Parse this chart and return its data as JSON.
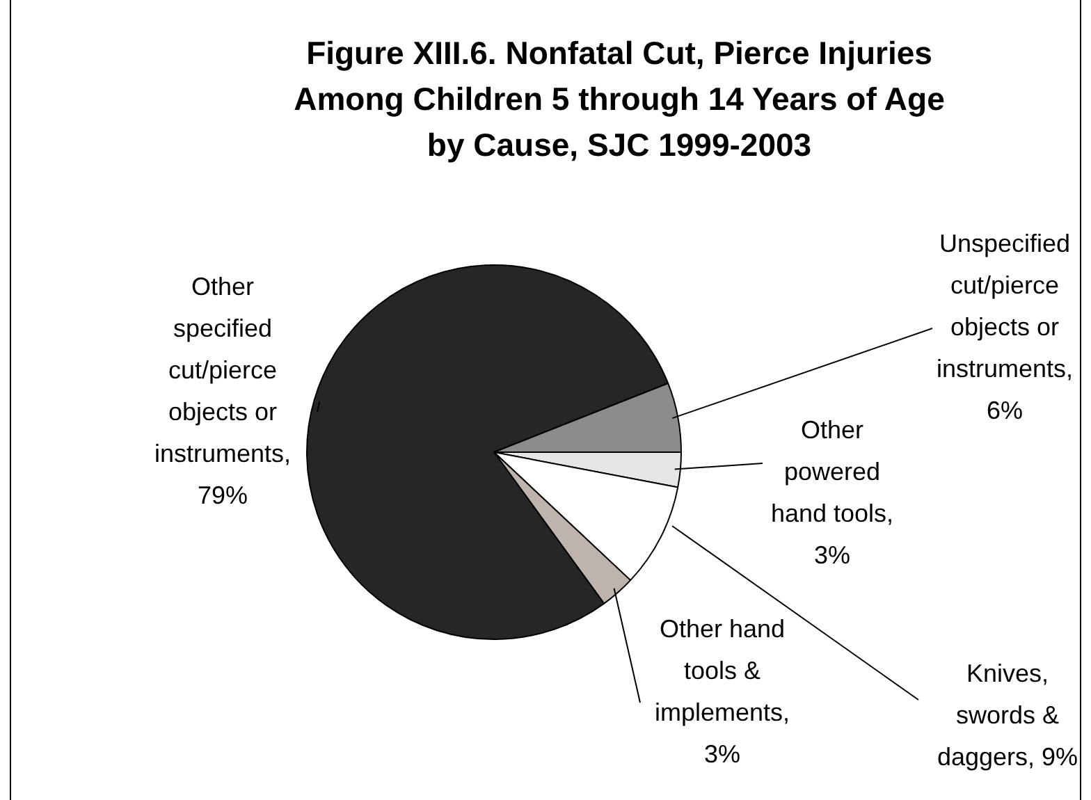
{
  "chart_data": {
    "type": "pie",
    "title": "Figure XIII.6.  Nonfatal Cut, Pierce Injuries Among Children 5 through 14 Years of Age by Cause, SJC 1999-2003",
    "categories": [
      "Other powered hand tools, 3%",
      "Knives, swords & daggers, 9%",
      "Other hand tools & implements, 3%",
      "Other specified cut/pierce objects or instruments, 79%",
      "Unspecified cut/pierce objects or instruments, 6%"
    ],
    "values": [
      3,
      9,
      3,
      79,
      6
    ],
    "colors": [
      "#e6e6e6",
      "#ffffff",
      "#bfb3ad",
      "#262626",
      "#8c8c8c"
    ]
  }
}
